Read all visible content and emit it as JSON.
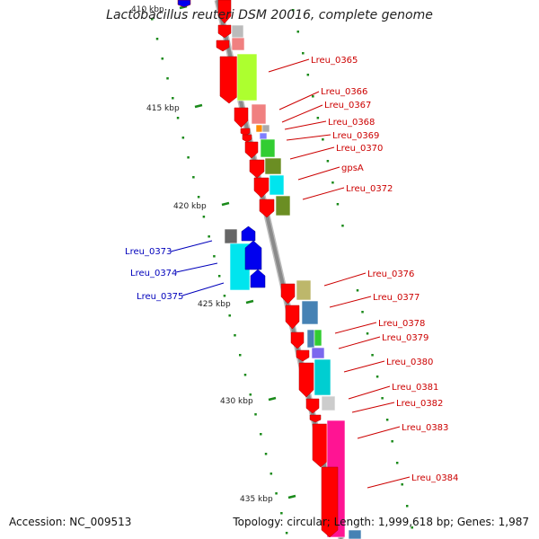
{
  "title": "Lactobacillus reuteri DSM 20016, complete genome",
  "footer": {
    "accession": "Accession: NC_009513",
    "summary": "Topology: circular; Length: 1,999,618 bp; Genes: 1,987"
  },
  "colors": {
    "forward_label": "#cc0000",
    "reverse_label": "#0000bb",
    "tick": "#1a8a1a",
    "backbone": "#8a8a8a"
  },
  "ticks": [
    {
      "label": "410 kbp"
    },
    {
      "label": "415 kbp"
    },
    {
      "label": "420 kbp"
    },
    {
      "label": "425 kbp"
    },
    {
      "label": "430 kbp"
    },
    {
      "label": "435 kbp"
    }
  ],
  "gene_labels": [
    {
      "text": "Lreu_0365",
      "strand": "forward"
    },
    {
      "text": "Lreu_0366",
      "strand": "forward"
    },
    {
      "text": "Lreu_0367",
      "strand": "forward"
    },
    {
      "text": "Lreu_0368",
      "strand": "forward"
    },
    {
      "text": "Lreu_0369",
      "strand": "forward"
    },
    {
      "text": "Lreu_0370",
      "strand": "forward"
    },
    {
      "text": "gpsA",
      "strand": "forward"
    },
    {
      "text": "Lreu_0372",
      "strand": "forward"
    },
    {
      "text": "Lreu_0373",
      "strand": "reverse"
    },
    {
      "text": "Lreu_0374",
      "strand": "reverse"
    },
    {
      "text": "Lreu_0375",
      "strand": "reverse"
    },
    {
      "text": "Lreu_0376",
      "strand": "forward"
    },
    {
      "text": "Lreu_0377",
      "strand": "forward"
    },
    {
      "text": "Lreu_0378",
      "strand": "forward"
    },
    {
      "text": "Lreu_0379",
      "strand": "forward"
    },
    {
      "text": "Lreu_0380",
      "strand": "forward"
    },
    {
      "text": "Lreu_0381",
      "strand": "forward"
    },
    {
      "text": "Lreu_0382",
      "strand": "forward"
    },
    {
      "text": "Lreu_0383",
      "strand": "forward"
    },
    {
      "text": "Lreu_0384",
      "strand": "forward"
    }
  ]
}
